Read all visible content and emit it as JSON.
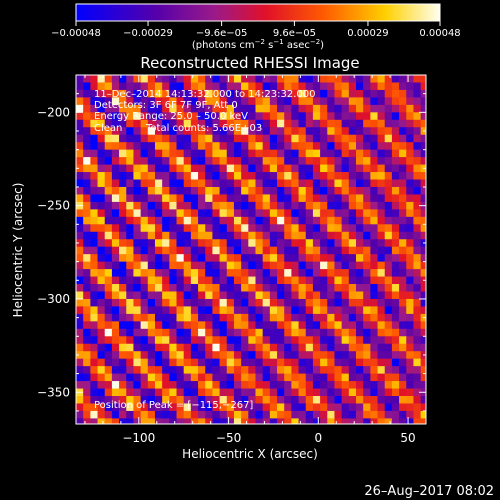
{
  "chart_data": {
    "type": "heatmap",
    "title": "Reconstructed RHESSI Image",
    "xlabel": "Heliocentric X (arcsec)",
    "ylabel": "Heliocentric Y (arcsec)",
    "xlim": [
      -135,
      60
    ],
    "ylim": [
      -367,
      -180
    ],
    "x_ticks": [
      -100,
      -50,
      0,
      50
    ],
    "x_tick_labels": [
      "−100",
      "−50",
      "0",
      "50"
    ],
    "y_ticks": [
      -200,
      -250,
      -300,
      -350
    ],
    "y_tick_labels": [
      "−200",
      "−250",
      "−300",
      "−350"
    ],
    "colorbar": {
      "range": [
        -0.00048,
        0.00048
      ],
      "tick_values": [
        -0.00048,
        -0.00029,
        -9.6e-05,
        9.6e-05,
        0.00029,
        0.00048
      ],
      "tick_labels": [
        "−0.00048",
        "−0.00029",
        "−9.6e−05",
        "9.6e−05",
        "0.00029",
        "0.00048"
      ],
      "unit_base": "(photons cm",
      "unit_exp1": "−2",
      "unit_mid": " s",
      "unit_exp2": "−1",
      "unit_mid2": " asec",
      "unit_exp3": "−2",
      "unit_end": ")",
      "colormap": "rhessi-blue-purple-red-yellow-white"
    },
    "annotations": {
      "time_range": "11–Dec–2014 14:13:32.000 to 14:23:32.000",
      "detectors": "Detectors: 3F 6F 7F 9F, Att 0",
      "energy": "Energy Range: 25.0 – 50.0 keV",
      "method": "Clean",
      "counts": "Total counts: 5.66E+03",
      "peak": "Position of Peak = [−115,−267]"
    },
    "peak_position": [
      -115,
      -267
    ],
    "pattern": "diagonal fringes (stripes running top-left to bottom-right)"
  },
  "footer_timestamp": "26–Aug–2017 08:02"
}
